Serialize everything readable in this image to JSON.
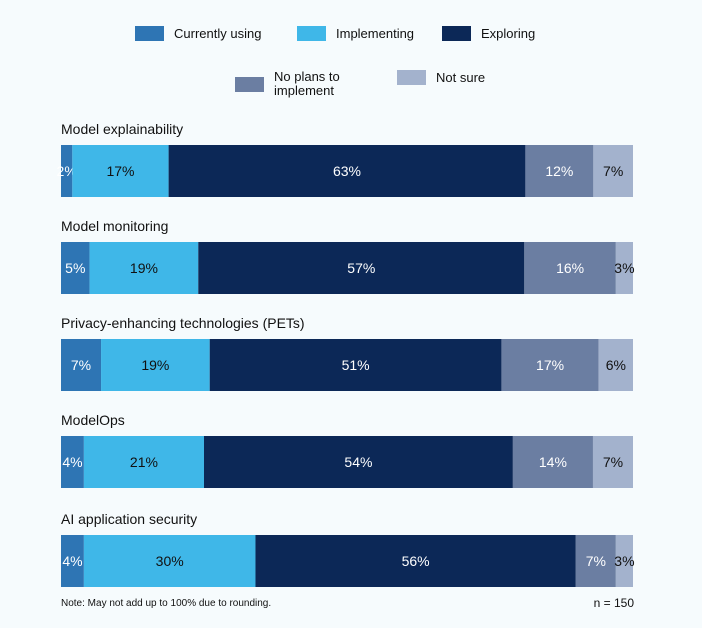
{
  "chart_data": {
    "type": "bar",
    "orientation": "horizontal",
    "stacked": true,
    "categories": [
      "Model explainability",
      "Model monitoring",
      "Privacy-enhancing technologies (PETs)",
      "ModelOps",
      "AI application security"
    ],
    "series": [
      {
        "name": "Currently using",
        "color": "#2e75b4",
        "label_color": "#ffffff",
        "values": [
          2,
          5,
          7,
          4,
          4
        ]
      },
      {
        "name": "Implementing",
        "color": "#3fb7e8",
        "label_color": "#111111",
        "values": [
          17,
          19,
          19,
          21,
          30
        ]
      },
      {
        "name": "Exploring",
        "color": "#0c2857",
        "label_color": "#ffffff",
        "values": [
          63,
          57,
          51,
          54,
          56
        ]
      },
      {
        "name": "No plans to implement",
        "color": "#6b7ea2",
        "label_color": "#ffffff",
        "values": [
          12,
          16,
          17,
          14,
          7
        ]
      },
      {
        "name": "Not sure",
        "color": "#a3b2cd",
        "label_color": "#111111",
        "values": [
          7,
          3,
          6,
          7,
          3
        ]
      }
    ],
    "unit": "%",
    "legend_position": "top",
    "grid": false,
    "note": "Note: May not add up to 100% due to rounding.",
    "sample": "n = 150"
  }
}
